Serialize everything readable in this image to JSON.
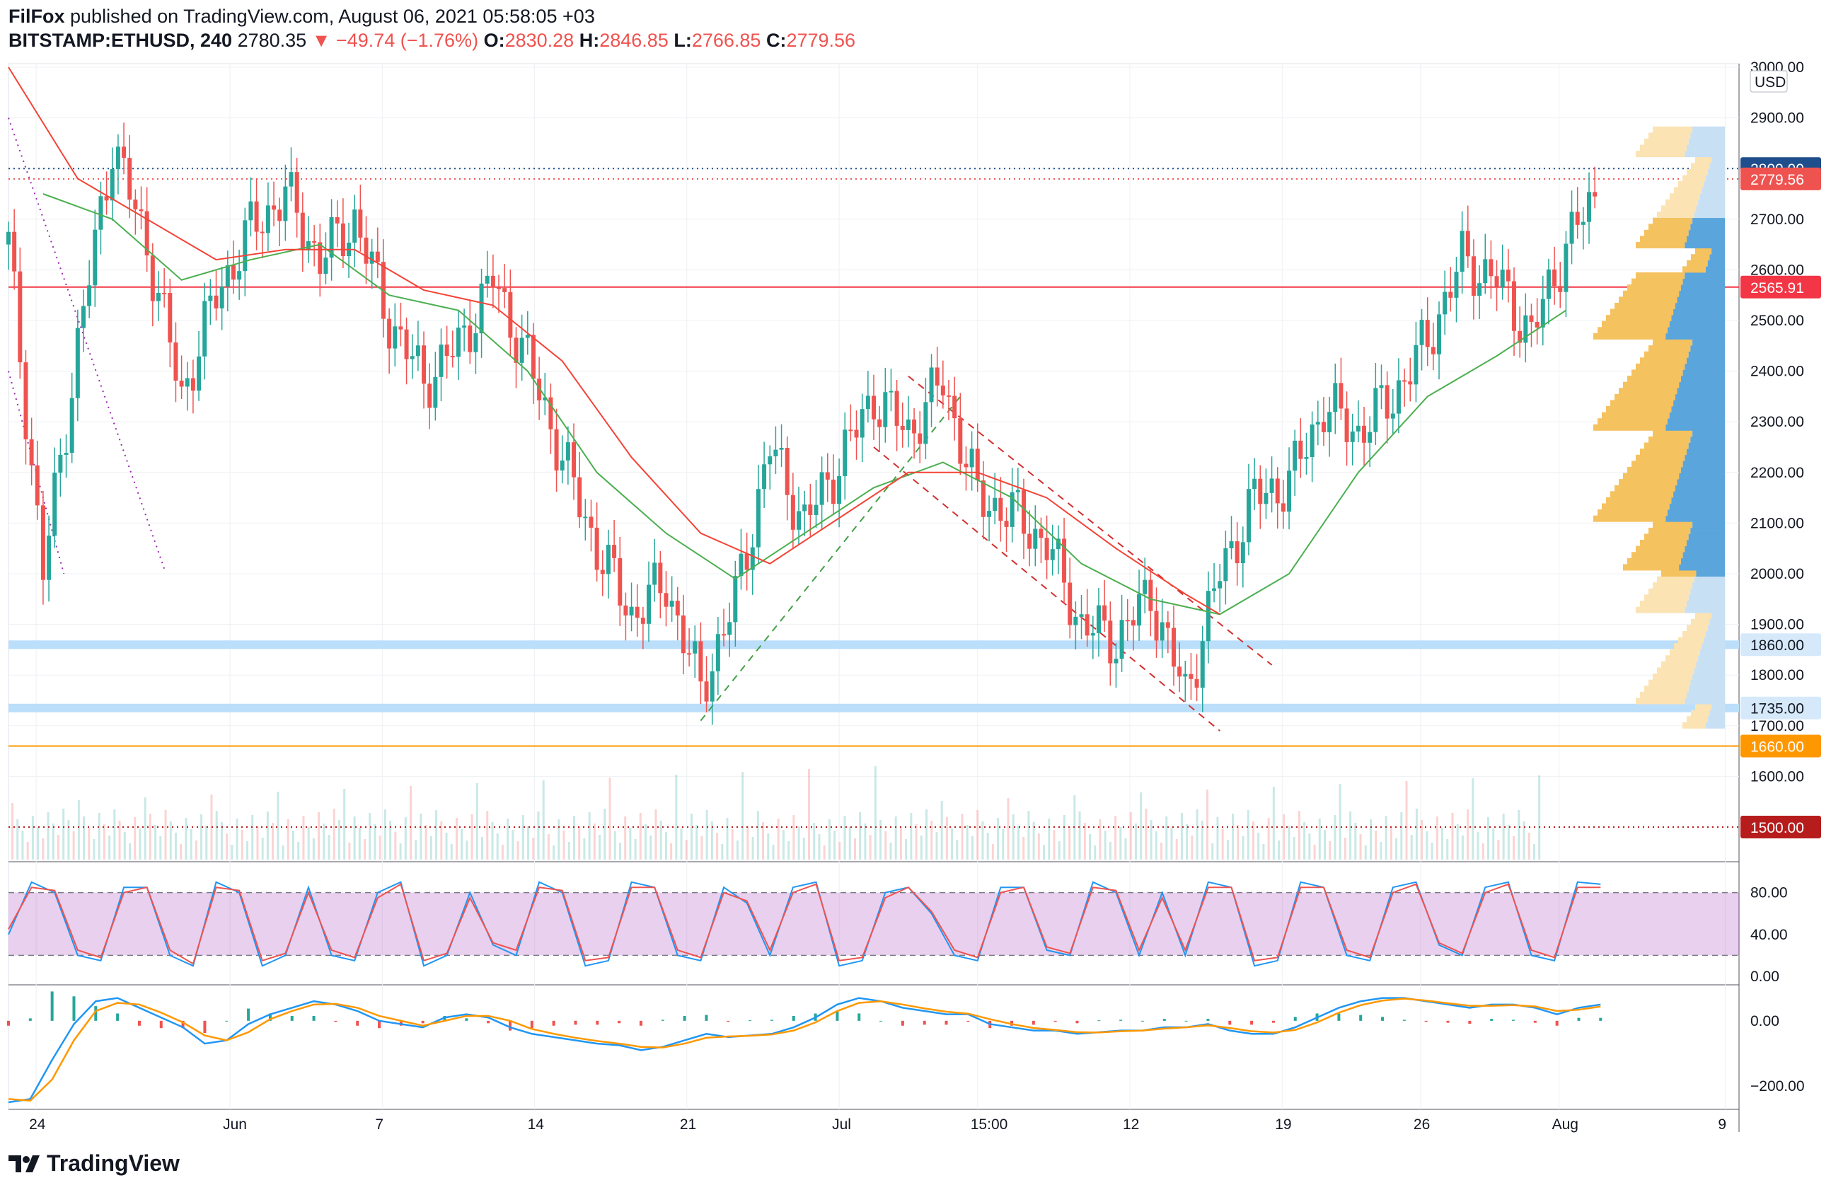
{
  "header": {
    "author": "FilFox",
    "published_text": "published on TradingView.com, August 06, 2021 05:58:05 +03",
    "symbol": "BITSTAMP:ETHUSD, 240",
    "last": "2780.35",
    "change": "▼ −49.74 (−1.76%)",
    "o_label": "O:",
    "o": "2830.28",
    "h_label": "H:",
    "h": "2846.85",
    "l_label": "L:",
    "l": "2766.85",
    "c_label": "C:",
    "c": "2779.56"
  },
  "footer": {
    "brand": "TradingView"
  },
  "chart_data": [
    {
      "type": "candlestick",
      "currency": "USD",
      "ylim": [
        1500,
        3000
      ],
      "y_ticks": [
        "3000.00",
        "2900.00",
        "2800.00",
        "2700.00",
        "2600.00",
        "2500.00",
        "2400.00",
        "2300.00",
        "2200.00",
        "2100.00",
        "2000.00",
        "1900.00",
        "1800.00",
        "1700.00",
        "1600.00"
      ],
      "x_ticks": [
        "24",
        "Jun",
        "7",
        "14",
        "21",
        "Jul",
        "15:00",
        "12",
        "19",
        "26",
        "Aug",
        "9"
      ],
      "price_path": [
        {
          "t": 0,
          "p": 2650
        },
        {
          "t": 2,
          "p": 2000
        },
        {
          "t": 4,
          "p": 2450
        },
        {
          "t": 6,
          "p": 2850
        },
        {
          "t": 8,
          "p": 2650
        },
        {
          "t": 10,
          "p": 2350
        },
        {
          "t": 12,
          "p": 2550
        },
        {
          "t": 14,
          "p": 2680
        },
        {
          "t": 16,
          "p": 2750
        },
        {
          "t": 18,
          "p": 2620
        },
        {
          "t": 20,
          "p": 2700
        },
        {
          "t": 22,
          "p": 2500
        },
        {
          "t": 24,
          "p": 2380
        },
        {
          "t": 26,
          "p": 2450
        },
        {
          "t": 28,
          "p": 2580
        },
        {
          "t": 30,
          "p": 2420
        },
        {
          "t": 32,
          "p": 2230
        },
        {
          "t": 34,
          "p": 2050
        },
        {
          "t": 36,
          "p": 1920
        },
        {
          "t": 38,
          "p": 1980
        },
        {
          "t": 40,
          "p": 1770
        },
        {
          "t": 42,
          "p": 1950
        },
        {
          "t": 44,
          "p": 2250
        },
        {
          "t": 46,
          "p": 2100
        },
        {
          "t": 48,
          "p": 2220
        },
        {
          "t": 50,
          "p": 2350
        },
        {
          "t": 52,
          "p": 2280
        },
        {
          "t": 54,
          "p": 2380
        },
        {
          "t": 56,
          "p": 2150
        },
        {
          "t": 58,
          "p": 2120
        },
        {
          "t": 60,
          "p": 2060
        },
        {
          "t": 62,
          "p": 1900
        },
        {
          "t": 64,
          "p": 1870
        },
        {
          "t": 66,
          "p": 1960
        },
        {
          "t": 68,
          "p": 1760
        },
        {
          "t": 70,
          "p": 2000
        },
        {
          "t": 72,
          "p": 2150
        },
        {
          "t": 74,
          "p": 2180
        },
        {
          "t": 76,
          "p": 2330
        },
        {
          "t": 78,
          "p": 2280
        },
        {
          "t": 80,
          "p": 2350
        },
        {
          "t": 82,
          "p": 2460
        },
        {
          "t": 84,
          "p": 2620
        },
        {
          "t": 86,
          "p": 2580
        },
        {
          "t": 88,
          "p": 2470
        },
        {
          "t": 90,
          "p": 2650
        },
        {
          "t": 92,
          "p": 2760
        }
      ],
      "ma_fast": [
        {
          "t": 2,
          "p": 2750
        },
        {
          "t": 6,
          "p": 2700
        },
        {
          "t": 10,
          "p": 2580
        },
        {
          "t": 14,
          "p": 2620
        },
        {
          "t": 18,
          "p": 2650
        },
        {
          "t": 22,
          "p": 2550
        },
        {
          "t": 26,
          "p": 2520
        },
        {
          "t": 30,
          "p": 2400
        },
        {
          "t": 34,
          "p": 2200
        },
        {
          "t": 38,
          "p": 2080
        },
        {
          "t": 42,
          "p": 1990
        },
        {
          "t": 46,
          "p": 2080
        },
        {
          "t": 50,
          "p": 2170
        },
        {
          "t": 54,
          "p": 2220
        },
        {
          "t": 58,
          "p": 2150
        },
        {
          "t": 62,
          "p": 2020
        },
        {
          "t": 66,
          "p": 1950
        },
        {
          "t": 70,
          "p": 1920
        },
        {
          "t": 74,
          "p": 2000
        },
        {
          "t": 78,
          "p": 2200
        },
        {
          "t": 82,
          "p": 2350
        },
        {
          "t": 86,
          "p": 2430
        },
        {
          "t": 90,
          "p": 2520
        }
      ],
      "ma_slow": [
        {
          "t": 0,
          "p": 3000
        },
        {
          "t": 4,
          "p": 2780
        },
        {
          "t": 8,
          "p": 2700
        },
        {
          "t": 12,
          "p": 2620
        },
        {
          "t": 16,
          "p": 2640
        },
        {
          "t": 20,
          "p": 2640
        },
        {
          "t": 24,
          "p": 2560
        },
        {
          "t": 28,
          "p": 2530
        },
        {
          "t": 32,
          "p": 2420
        },
        {
          "t": 36,
          "p": 2230
        },
        {
          "t": 40,
          "p": 2080
        },
        {
          "t": 44,
          "p": 2020
        },
        {
          "t": 48,
          "p": 2110
        },
        {
          "t": 52,
          "p": 2200
        },
        {
          "t": 56,
          "p": 2200
        },
        {
          "t": 60,
          "p": 2150
        },
        {
          "t": 64,
          "p": 2050
        },
        {
          "t": 68,
          "p": 1960
        },
        {
          "t": 70,
          "p": 1920
        }
      ],
      "horizontal_levels": [
        {
          "price": 2800,
          "label": "2800.00",
          "color": "#1f4e8c",
          "style": "dotted"
        },
        {
          "price": 2779.56,
          "label": "2779.56",
          "color": "#ef5350",
          "style": "dotted"
        },
        {
          "price": 2565.91,
          "label": "2565.91",
          "color": "#f23645",
          "style": "solid"
        },
        {
          "price": 1860,
          "label": "1860.00",
          "color": "#bbdefb",
          "style": "band"
        },
        {
          "price": 1735,
          "label": "1735.00",
          "color": "#bbdefb",
          "style": "band"
        },
        {
          "price": 1660,
          "label": "1660.00",
          "color": "#ff9800",
          "style": "solid"
        },
        {
          "price": 1500,
          "label": "1500.00",
          "color": "#b71c1c",
          "style": "dotted"
        }
      ],
      "channels": [
        {
          "name": "",
          "color": "#d32f2f",
          "from": {
            "t": 52,
            "p": 2390
          },
          "to": {
            "t": 73,
            "p": 1820
          }
        },
        {
          "name": "",
          "color": "#d32f2f",
          "from": {
            "t": 50,
            "p": 2250
          },
          "to": {
            "t": 70,
            "p": 1690
          }
        },
        {
          "name": "",
          "color": "#43a047",
          "from": {
            "t": 40,
            "p": 1710
          },
          "to": {
            "t": 55,
            "p": 2350
          }
        }
      ],
      "volume_profile": "horizontal histogram on right side, yellow/blue"
    },
    {
      "type": "line",
      "indicator": "stochastic",
      "ylim": [
        0,
        100
      ],
      "y_ticks": [
        "80.00",
        "40.00",
        "0.00"
      ],
      "band": [
        20,
        80
      ],
      "series": [
        {
          "color": "#2196f3",
          "values": [
            40,
            90,
            80,
            20,
            15,
            85,
            85,
            20,
            10,
            90,
            80,
            10,
            20,
            85,
            20,
            15,
            80,
            90,
            10,
            20,
            80,
            30,
            20,
            90,
            80,
            10,
            15,
            90,
            85,
            20,
            15,
            85,
            70,
            20,
            85,
            90,
            10,
            15,
            80,
            85,
            60,
            20,
            15,
            85,
            85,
            25,
            20,
            90,
            80,
            20,
            80,
            20,
            90,
            85,
            10,
            15,
            90,
            85,
            20,
            15,
            85,
            90,
            30,
            20,
            85,
            90,
            20,
            15,
            90,
            88
          ]
        },
        {
          "color": "#ef5350",
          "values": [
            45,
            85,
            82,
            25,
            18,
            80,
            85,
            25,
            12,
            85,
            82,
            15,
            22,
            80,
            25,
            18,
            75,
            88,
            15,
            22,
            75,
            32,
            25,
            85,
            82,
            15,
            18,
            85,
            85,
            25,
            18,
            80,
            72,
            25,
            80,
            88,
            15,
            18,
            75,
            85,
            62,
            25,
            18,
            80,
            85,
            28,
            22,
            85,
            82,
            25,
            75,
            25,
            85,
            85,
            15,
            18,
            85,
            85,
            25,
            18,
            80,
            88,
            32,
            22,
            80,
            88,
            25,
            18,
            85,
            85
          ]
        }
      ]
    },
    {
      "type": "line",
      "indicator": "macd",
      "ylim": [
        -250,
        80
      ],
      "y_ticks": [
        "0.00",
        "−200.00"
      ],
      "series": [
        {
          "color": "#2196f3",
          "values": [
            -250,
            -240,
            -120,
            -10,
            60,
            70,
            40,
            10,
            -20,
            -70,
            -60,
            -10,
            20,
            40,
            60,
            50,
            30,
            0,
            -10,
            -20,
            10,
            20,
            10,
            -20,
            -40,
            -50,
            -60,
            -70,
            -75,
            -90,
            -80,
            -60,
            -40,
            -50,
            -45,
            -40,
            -20,
            10,
            50,
            70,
            60,
            40,
            30,
            20,
            20,
            -10,
            -20,
            -30,
            -30,
            -40,
            -35,
            -30,
            -30,
            -20,
            -20,
            -10,
            -30,
            -40,
            -40,
            -20,
            10,
            40,
            60,
            70,
            70,
            60,
            50,
            40,
            50,
            50,
            40,
            20,
            40,
            50
          ]
        },
        {
          "color": "#ff9800",
          "values": [
            -240,
            -245,
            -180,
            -60,
            30,
            55,
            50,
            25,
            -5,
            -45,
            -60,
            -35,
            5,
            30,
            50,
            52,
            40,
            15,
            0,
            -15,
            0,
            15,
            15,
            0,
            -25,
            -40,
            -52,
            -62,
            -70,
            -80,
            -82,
            -70,
            -52,
            -48,
            -46,
            -42,
            -30,
            -5,
            30,
            55,
            60,
            50,
            38,
            28,
            22,
            5,
            -10,
            -22,
            -28,
            -35,
            -36,
            -32,
            -30,
            -24,
            -20,
            -14,
            -22,
            -32,
            -36,
            -28,
            -5,
            25,
            48,
            62,
            68,
            62,
            54,
            46,
            46,
            48,
            44,
            30,
            34,
            44
          ]
        }
      ]
    }
  ]
}
